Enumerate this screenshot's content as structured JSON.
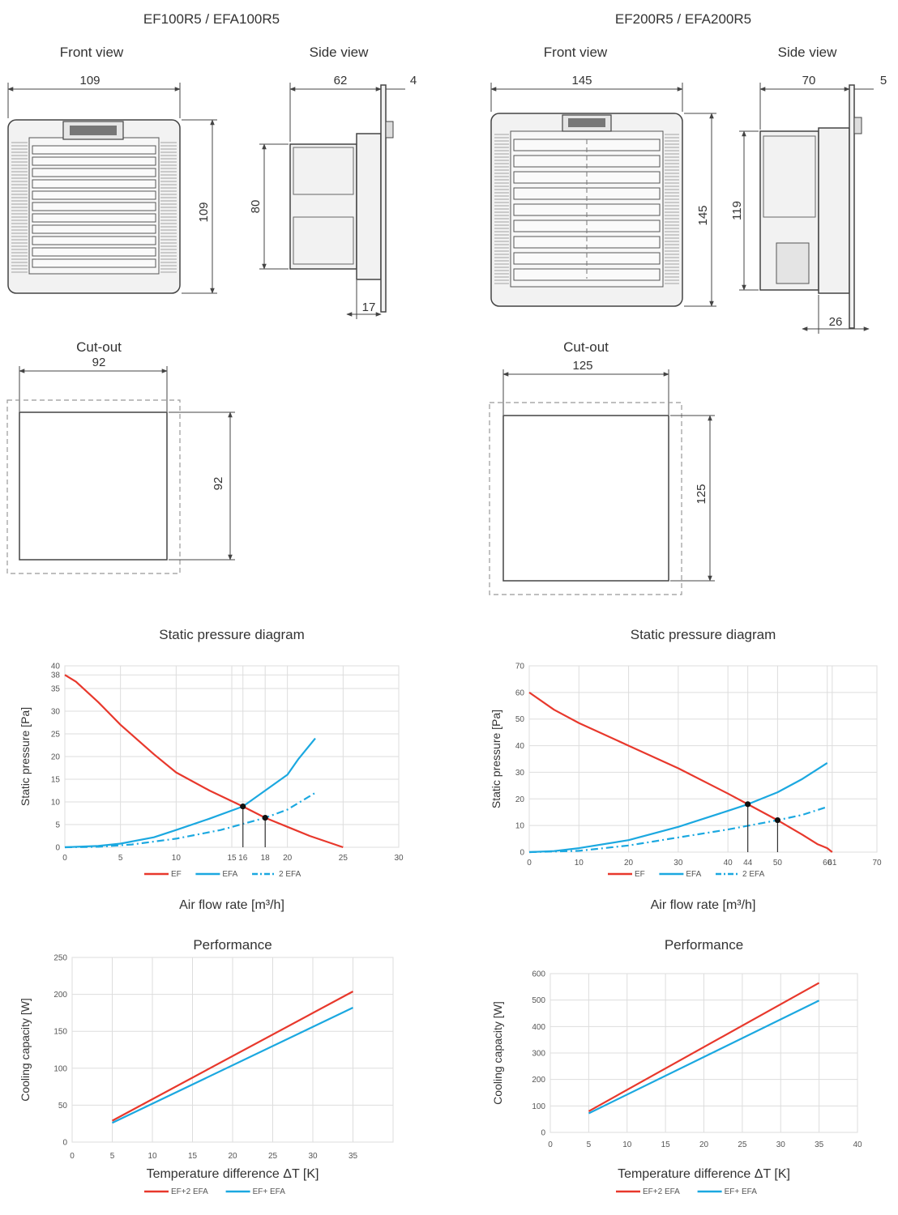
{
  "models": [
    {
      "title": "EF100R5 / EFA100R5",
      "front_view_label": "Front view",
      "side_view_label": "Side view",
      "cutout_label": "Cut-out",
      "dims": {
        "front_width": "109",
        "front_height": "109",
        "side_depth": "62",
        "side_flange": "4",
        "side_height": "80",
        "side_bottom": "17",
        "cutout_width": "92",
        "cutout_height": "92"
      }
    },
    {
      "title": "EF200R5 / EFA200R5",
      "front_view_label": "Front view",
      "side_view_label": "Side view",
      "cutout_label": "Cut-out",
      "dims": {
        "front_width": "145",
        "front_height": "145",
        "side_depth": "70",
        "side_flange": "5",
        "side_height": "119",
        "side_bottom": "26",
        "cutout_width": "125",
        "cutout_height": "125"
      }
    }
  ],
  "colors": {
    "ef": "#e8382c",
    "efa": "#1ba8e0",
    "marker": "#111111",
    "grid": "#dddddd"
  },
  "chart_data": [
    {
      "id": "static-100",
      "type": "line",
      "title": "Static pressure diagram",
      "xlabel": "Air flow rate [m³/h]",
      "ylabel": "Static pressure  [Pa]",
      "xlim": [
        0,
        30
      ],
      "ylim": [
        0,
        40
      ],
      "xticks": [
        0,
        5,
        10,
        15,
        16,
        18,
        20,
        25,
        30
      ],
      "yticks": [
        0,
        5,
        10,
        15,
        20,
        25,
        30,
        35,
        38,
        40
      ],
      "series": [
        {
          "name": "EF",
          "style": "solid",
          "color": "#e8382c",
          "x": [
            0,
            1,
            3,
            5,
            8,
            10,
            13,
            16,
            18,
            20,
            22,
            25
          ],
          "y": [
            38,
            36.5,
            32,
            27,
            20.5,
            16.5,
            12.5,
            9,
            6.5,
            4.5,
            2.5,
            0
          ]
        },
        {
          "name": "EFA",
          "style": "solid",
          "color": "#1ba8e0",
          "x": [
            0,
            3,
            5,
            8,
            10,
            13,
            16,
            18,
            20,
            21,
            22.5
          ],
          "y": [
            0,
            0.3,
            0.8,
            2.2,
            3.8,
            6.3,
            9,
            12.5,
            16,
            19.5,
            24
          ]
        },
        {
          "name": "2 EFA",
          "style": "dashdot",
          "color": "#1ba8e0",
          "x": [
            0,
            3,
            6,
            10,
            14,
            18,
            20,
            22.5
          ],
          "y": [
            0,
            0.1,
            0.6,
            1.9,
            3.8,
            6.5,
            8.3,
            12
          ]
        }
      ],
      "markers": [
        {
          "x": 16,
          "y": 9
        },
        {
          "x": 18,
          "y": 6.5
        }
      ],
      "legend": "bottom"
    },
    {
      "id": "static-200",
      "type": "line",
      "title": "Static pressure diagram",
      "xlabel": "Air flow rate [m³/h]",
      "ylabel": "Static pressure  [Pa]",
      "xlim": [
        0,
        70
      ],
      "ylim": [
        0,
        70
      ],
      "xticks": [
        0,
        10,
        20,
        30,
        40,
        44,
        50,
        60,
        61,
        70
      ],
      "yticks": [
        0,
        10,
        20,
        30,
        40,
        50,
        60,
        70
      ],
      "series": [
        {
          "name": "EF",
          "style": "solid",
          "color": "#e8382c",
          "x": [
            0,
            5,
            10,
            20,
            30,
            40,
            44,
            50,
            55,
            58,
            60,
            61
          ],
          "y": [
            60,
            53.5,
            48.5,
            40,
            31.5,
            22,
            18,
            12,
            6.5,
            3,
            1.5,
            0
          ]
        },
        {
          "name": "EFA",
          "style": "solid",
          "color": "#1ba8e0",
          "x": [
            0,
            5,
            10,
            20,
            30,
            40,
            44,
            50,
            55,
            60
          ],
          "y": [
            0,
            0.4,
            1.5,
            4.5,
            9.5,
            15.5,
            18,
            22.5,
            27.5,
            33.5
          ]
        },
        {
          "name": "2 EFA",
          "style": "dashdot",
          "color": "#1ba8e0",
          "x": [
            0,
            10,
            20,
            30,
            40,
            50,
            55,
            60
          ],
          "y": [
            0,
            0.5,
            2.5,
            5.5,
            8.5,
            12,
            14,
            17
          ]
        }
      ],
      "markers": [
        {
          "x": 44,
          "y": 18
        },
        {
          "x": 50,
          "y": 12
        }
      ],
      "legend": "bottom"
    },
    {
      "id": "perf-100",
      "type": "line",
      "title": "Performance",
      "xlabel": "Temperature difference ΔT [K]",
      "ylabel": "Cooling capacity  [W]",
      "xlim": [
        0,
        40
      ],
      "ylim": [
        0,
        250
      ],
      "xticks": [
        0,
        5,
        10,
        15,
        20,
        25,
        30,
        35
      ],
      "yticks": [
        0,
        50,
        100,
        150,
        200,
        250
      ],
      "series": [
        {
          "name": "EF+2 EFA",
          "style": "solid",
          "color": "#e8382c",
          "x": [
            5,
            35
          ],
          "y": [
            29,
            204
          ]
        },
        {
          "name": "EF+ EFA",
          "style": "solid",
          "color": "#1ba8e0",
          "x": [
            5,
            35
          ],
          "y": [
            26,
            182
          ]
        }
      ],
      "legend": "bottom"
    },
    {
      "id": "perf-200",
      "type": "line",
      "title": "Performance",
      "xlabel": "Temperature difference ΔT [K]",
      "ylabel": "Cooling capacity  [W]",
      "xlim": [
        0,
        40
      ],
      "ylim": [
        0,
        600
      ],
      "xticks": [
        0,
        5,
        10,
        15,
        20,
        25,
        30,
        35,
        40
      ],
      "yticks": [
        0,
        100,
        200,
        300,
        400,
        500,
        600
      ],
      "series": [
        {
          "name": "EF+2 EFA",
          "style": "solid",
          "color": "#e8382c",
          "x": [
            5,
            35
          ],
          "y": [
            80,
            565
          ]
        },
        {
          "name": "EF+ EFA",
          "style": "solid",
          "color": "#1ba8e0",
          "x": [
            5,
            35
          ],
          "y": [
            72,
            498
          ]
        }
      ],
      "legend": "bottom"
    }
  ]
}
